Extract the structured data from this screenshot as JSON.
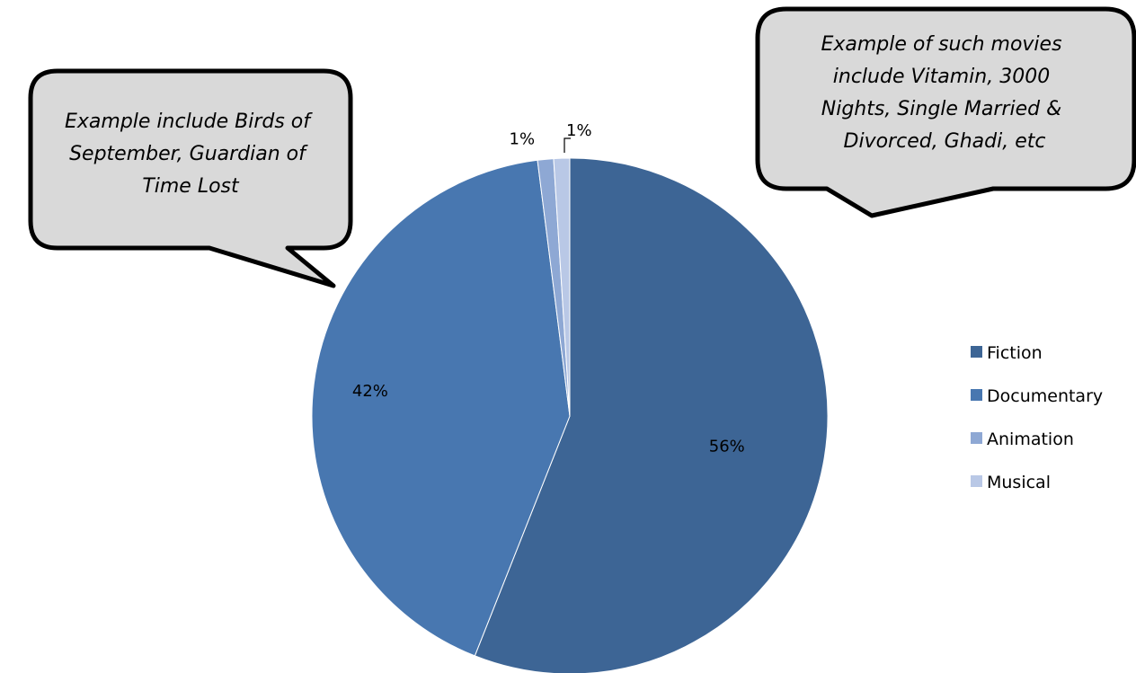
{
  "chart_data": {
    "type": "pie",
    "categories": [
      "Fiction",
      "Documentary",
      "Animation",
      "Musical"
    ],
    "values": [
      56,
      42,
      1,
      1
    ],
    "data_labels": [
      "56%",
      "42%",
      "1%",
      "1%"
    ],
    "colors": [
      "#3d6595",
      "#4877b0",
      "#8ea8d4",
      "#b9c8e6"
    ],
    "legend": {
      "position": "right",
      "entries": [
        "Fiction",
        "Documentary",
        "Animation",
        "Musical"
      ]
    },
    "title": "",
    "annotations": [
      {
        "lines": [
          "Example include Birds of",
          "September, Guardian of",
          "Time Lost"
        ]
      },
      {
        "lines": [
          "Example of such movies",
          "include Vitamin, 3000",
          "Nights, Single Married &",
          "Divorced, Ghadi, etc"
        ]
      }
    ]
  }
}
